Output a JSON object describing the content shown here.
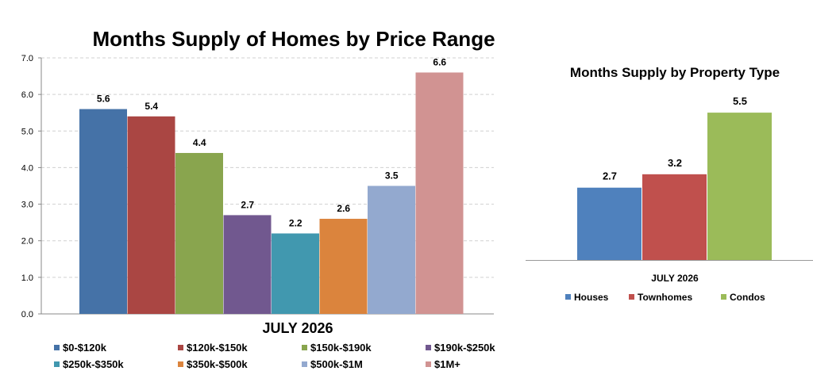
{
  "chart_data": [
    {
      "type": "bar",
      "title": "Months Supply of Homes by Price Range",
      "xlabel": "JULY 2026",
      "ylabel": "",
      "ylim": [
        0,
        7
      ],
      "yticks": [
        "0.0",
        "1.0",
        "2.0",
        "3.0",
        "4.0",
        "5.0",
        "6.0",
        "7.0"
      ],
      "grid": true,
      "legend": "bottom",
      "categories": [
        "$0-$120k",
        "$120k-$150k",
        "$150k-$190k",
        "$190k-$250k",
        "$250k-$350k",
        "$350k-$500k",
        "$500k-$1M",
        "$1M+"
      ],
      "values": [
        5.6,
        5.4,
        4.4,
        2.7,
        2.2,
        2.6,
        3.5,
        6.6
      ],
      "value_labels": [
        "5.6",
        "5.4",
        "4.4",
        "2.7",
        "2.2",
        "2.6",
        "3.5",
        "6.6"
      ],
      "colors": [
        "#4572A7",
        "#AA4643",
        "#89A54E",
        "#71588F",
        "#4198AF",
        "#DB843D",
        "#93A9CF",
        "#D19392"
      ]
    },
    {
      "type": "bar",
      "title": "Months Supply by Property Type",
      "xlabel": "JULY 2026",
      "ylabel": "",
      "ylim": [
        0,
        7
      ],
      "grid": false,
      "legend": "bottom",
      "categories": [
        "Houses",
        "Townhomes",
        "Condos"
      ],
      "values": [
        2.7,
        3.2,
        5.5
      ],
      "value_labels": [
        "2.7",
        "3.2",
        "5.5"
      ],
      "colors": [
        "#4F81BD",
        "#C0504D",
        "#9BBB59"
      ]
    }
  ]
}
